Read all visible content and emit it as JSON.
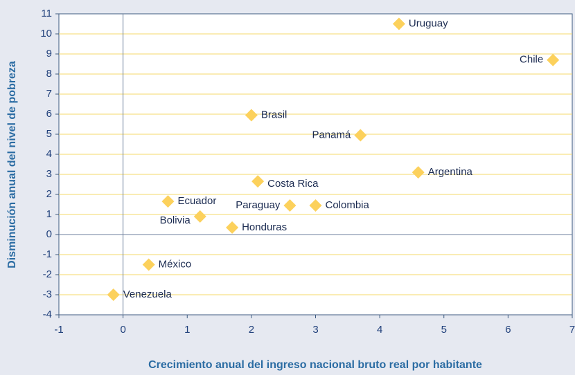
{
  "chart_data": {
    "type": "scatter",
    "xlabel": "Crecimiento anual del ingreso nacional bruto real por habitante",
    "ylabel": "Disminución anual del nivel de pobreza",
    "color": "#fcd15c",
    "points": [
      {
        "label": "Uruguay",
        "x": 4.3,
        "y": 10.5
      },
      {
        "label": "Chile",
        "x": 6.7,
        "y": 8.7
      },
      {
        "label": "Brasil",
        "x": 2.0,
        "y": 5.95
      },
      {
        "label": "Panamá",
        "x": 3.7,
        "y": 4.95
      },
      {
        "label": "Argentina",
        "x": 4.6,
        "y": 3.1
      },
      {
        "label": "Costa Rica",
        "x": 2.1,
        "y": 2.65
      },
      {
        "label": "Ecuador",
        "x": 0.7,
        "y": 1.65
      },
      {
        "label": "Paraguay",
        "x": 2.6,
        "y": 1.45
      },
      {
        "label": "Colombia",
        "x": 3.0,
        "y": 1.45
      },
      {
        "label": "Bolivia",
        "x": 1.2,
        "y": 0.9
      },
      {
        "label": "Honduras",
        "x": 1.7,
        "y": 0.35
      },
      {
        "label": "México",
        "x": 0.4,
        "y": -1.5
      },
      {
        "label": "Venezuela",
        "x": -0.15,
        "y": -3.0
      }
    ],
    "xlim": [
      -1,
      7
    ],
    "xticks": [
      -1,
      0,
      1,
      2,
      3,
      4,
      5,
      6,
      7
    ],
    "ylim": [
      -4,
      11
    ],
    "yticks": [
      -4,
      -3,
      -2,
      -1,
      0,
      1,
      2,
      3,
      4,
      5,
      6,
      7,
      8,
      9,
      10,
      11
    ],
    "grid": true
  }
}
